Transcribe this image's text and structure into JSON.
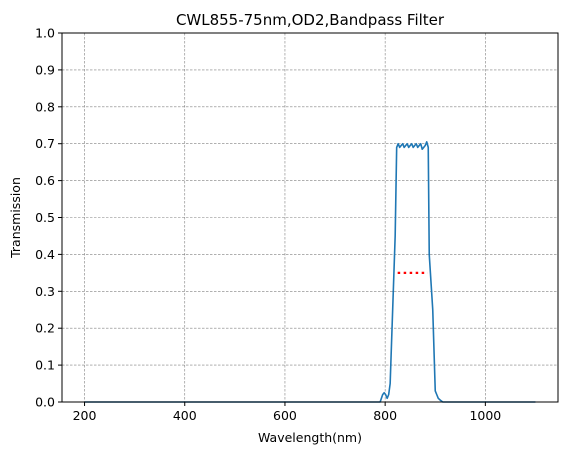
{
  "chart_data": {
    "type": "line",
    "title": "CWL855-75nm,OD2,Bandpass Filter",
    "xlabel": "Wavelength(nm)",
    "ylabel": "Transmission",
    "xlim": [
      155,
      1145
    ],
    "ylim": [
      0,
      1.0
    ],
    "xticks": [
      200,
      400,
      600,
      800,
      1000
    ],
    "yticks": [
      0.0,
      0.1,
      0.2,
      0.3,
      0.4,
      0.5,
      0.6,
      0.7,
      0.8,
      0.9,
      1.0
    ],
    "grid": true,
    "series": [
      {
        "color": "#1f77b4",
        "style": "solid",
        "x": [
          200,
          780,
          790,
          795,
          798,
          801,
          804,
          807,
          810,
          820,
          823,
          826,
          829,
          832,
          835,
          838,
          841,
          844,
          847,
          850,
          853,
          856,
          859,
          862,
          865,
          868,
          871,
          874,
          877,
          880,
          883,
          886,
          888,
          895,
          900,
          903,
          906,
          910,
          915,
          1100
        ],
        "y": [
          0,
          0,
          0,
          0.02,
          0.025,
          0.02,
          0.01,
          0.02,
          0.05,
          0.45,
          0.69,
          0.7,
          0.69,
          0.695,
          0.7,
          0.69,
          0.695,
          0.7,
          0.69,
          0.695,
          0.7,
          0.69,
          0.695,
          0.7,
          0.69,
          0.695,
          0.7,
          0.685,
          0.69,
          0.695,
          0.705,
          0.69,
          0.4,
          0.25,
          0.03,
          0.02,
          0.01,
          0.005,
          0,
          0
        ]
      },
      {
        "color": "#ff0000",
        "style": "dotted",
        "x": [
          825,
          885
        ],
        "y": [
          0.35,
          0.35
        ]
      }
    ]
  }
}
